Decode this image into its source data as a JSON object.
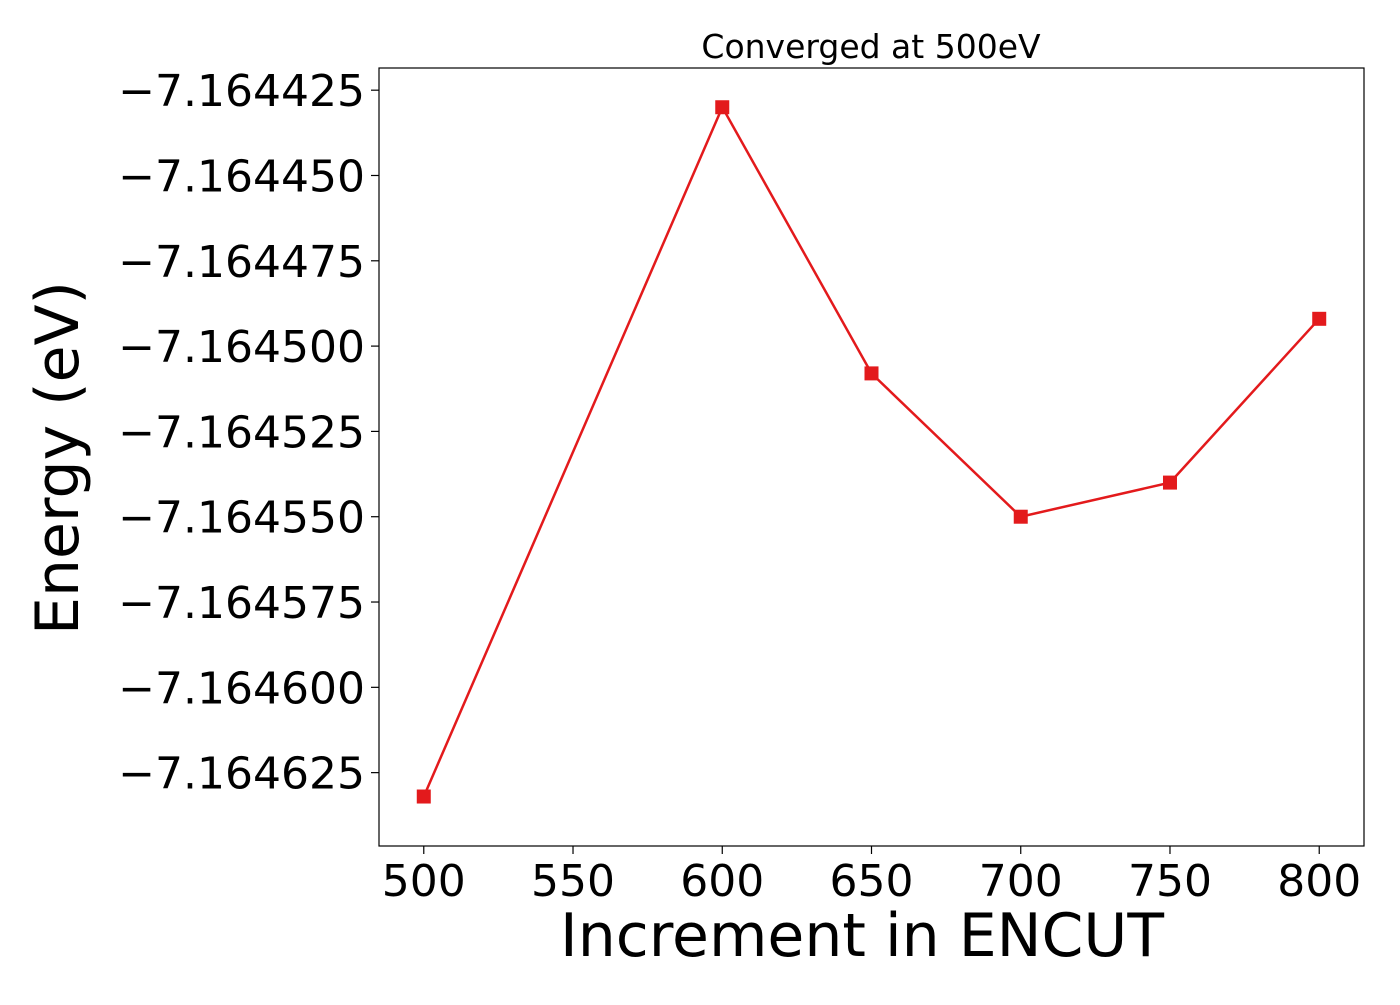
{
  "chart_data": {
    "type": "line",
    "title": "Converged at 500eV",
    "xlabel": "Increment in ENCUT",
    "ylabel": "Energy (eV)",
    "x": [
      500,
      600,
      650,
      700,
      750,
      800
    ],
    "series": [
      {
        "values": [
          -7.164632,
          -7.16443,
          -7.164508,
          -7.16455,
          -7.16454,
          -7.164492
        ],
        "color": "#e31a1c",
        "marker": "square"
      }
    ],
    "xlim": [
      485,
      815
    ],
    "ylim": [
      -7.1646465,
      -7.1644185
    ],
    "xticks": [
      500,
      550,
      600,
      650,
      700,
      750,
      800
    ],
    "xtick_labels": [
      "500",
      "550",
      "600",
      "650",
      "700",
      "750",
      "800"
    ],
    "yticks": [
      -7.164425,
      -7.16445,
      -7.164475,
      -7.1645,
      -7.164525,
      -7.16455,
      -7.164575,
      -7.1646,
      -7.164625
    ],
    "ytick_labels": [
      "−7.164425",
      "−7.164450",
      "−7.164475",
      "−7.164500",
      "−7.164525",
      "−7.164550",
      "−7.164575",
      "−7.164600",
      "−7.164625"
    ],
    "grid": false,
    "legend": false
  }
}
